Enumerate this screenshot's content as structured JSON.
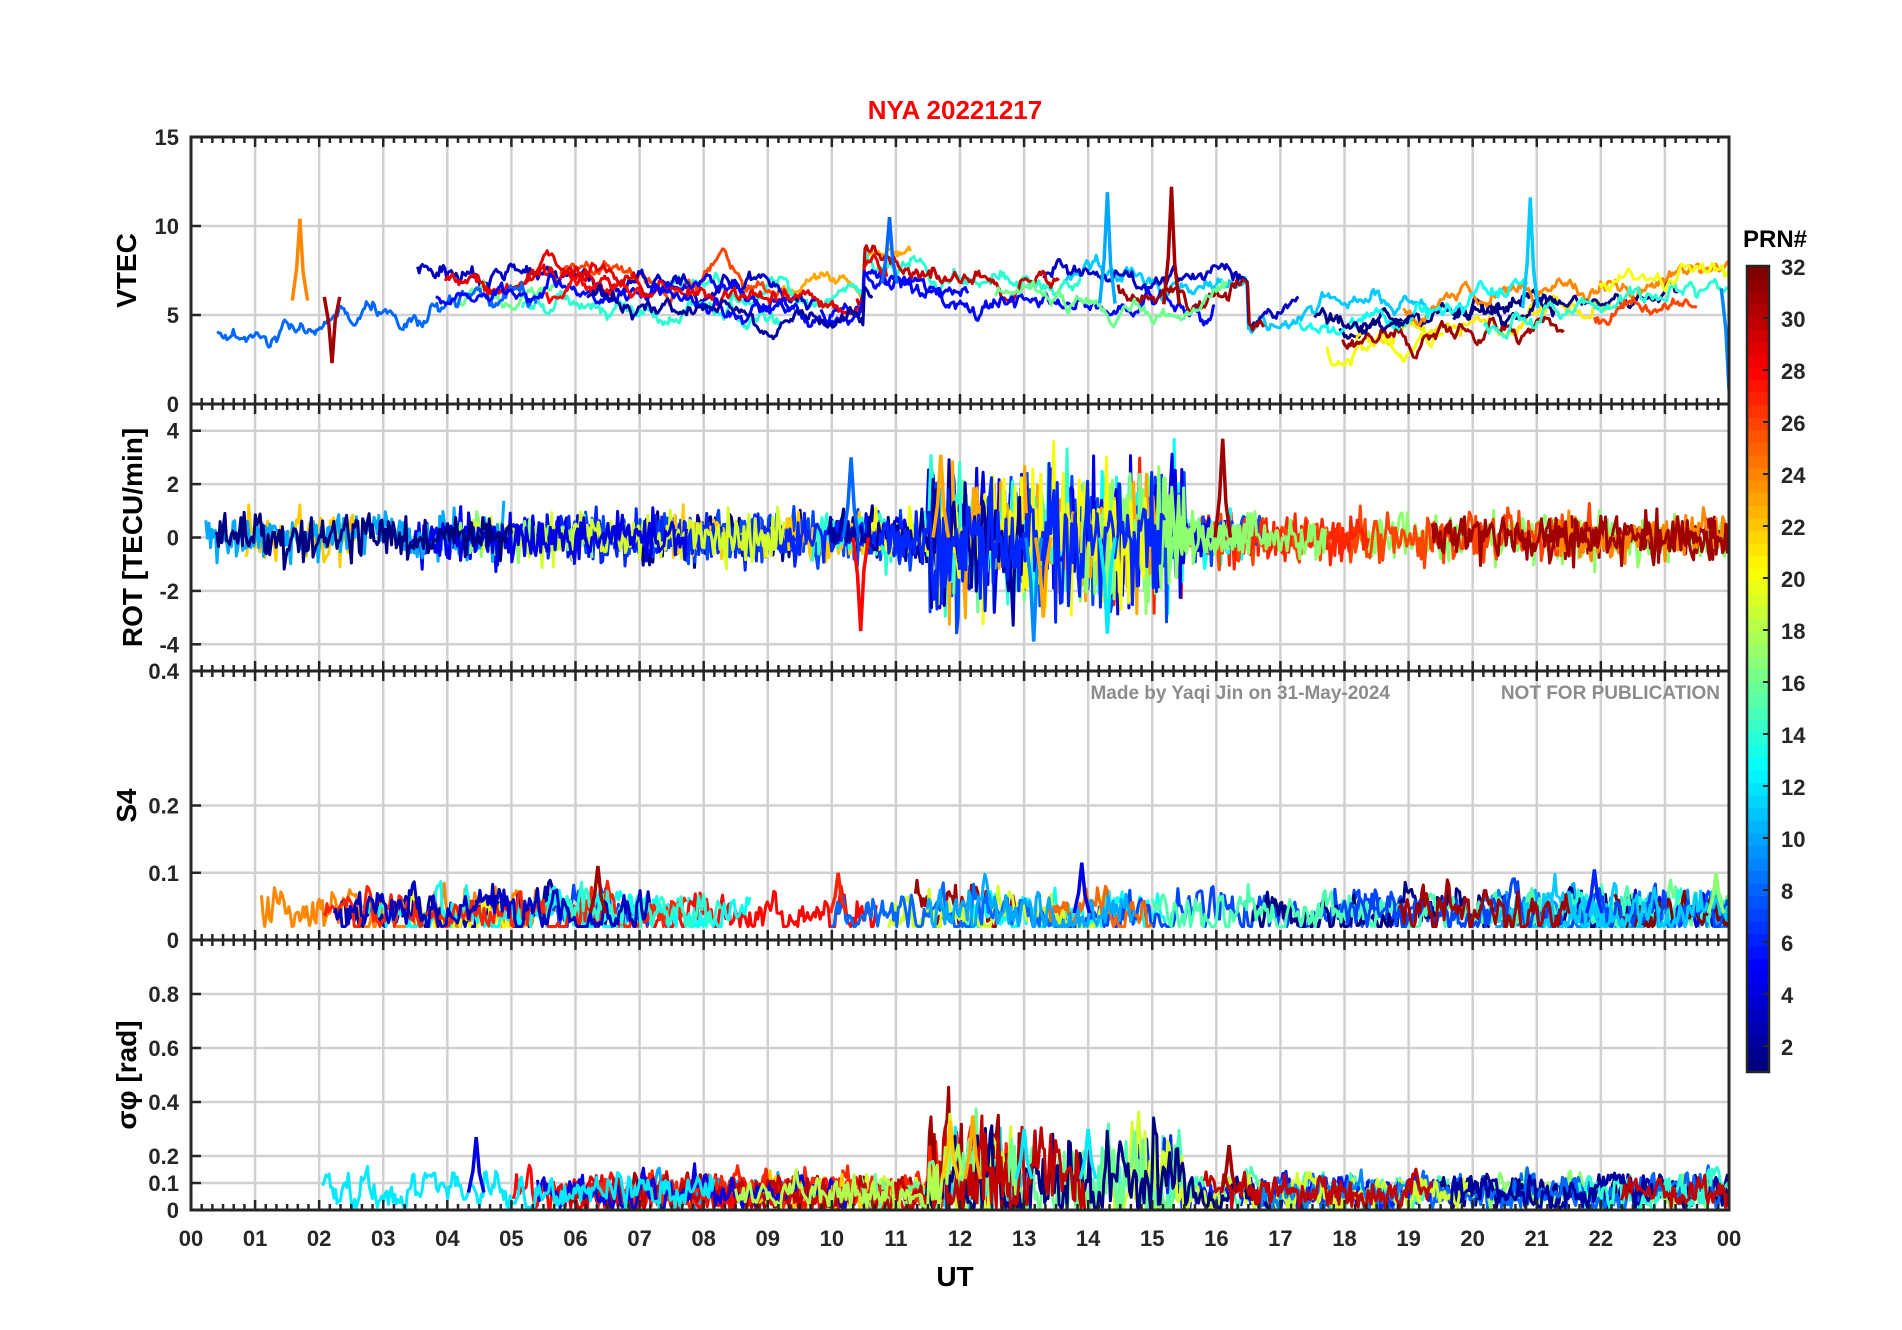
{
  "figure": {
    "title": "NYA   20221217",
    "xlabel": "UT",
    "watermark_left": "Made by Yaqi Jin on 31-May-2024",
    "watermark_right": "NOT FOR PUBLICATION",
    "colorbar": {
      "label": "PRN#",
      "ticks": [
        "2",
        "4",
        "6",
        "8",
        "10",
        "12",
        "14",
        "16",
        "18",
        "20",
        "22",
        "24",
        "26",
        "28",
        "30",
        "32"
      ],
      "range": [
        1,
        32
      ],
      "colormap": "jet"
    },
    "colors": {
      "title": "#ff0000",
      "axis": "#262626",
      "grid": "#d0d0d0",
      "watermark": "#8c8c8c"
    }
  },
  "chart_data": [
    {
      "type": "line",
      "id": "vtec",
      "ylabel": "VTEC",
      "xlabel": "UT",
      "xlim": [
        0,
        24
      ],
      "ylim": [
        0,
        15
      ],
      "yticks": [
        "0",
        "5",
        "10",
        "15"
      ],
      "xticks": [
        "00",
        "01",
        "02",
        "03",
        "04",
        "05",
        "06",
        "07",
        "08",
        "09",
        "10",
        "11",
        "12",
        "13",
        "14",
        "15",
        "16",
        "17",
        "18",
        "19",
        "20",
        "21",
        "22",
        "23",
        "00"
      ],
      "grid": true,
      "series_summary": "multiple satellite tracks colored by PRN 1-32, typical values 3-11 TECU",
      "highlights": [
        {
          "x": 15.3,
          "y": 12.2,
          "prn": 31
        },
        {
          "x": 14.3,
          "y": 11.9,
          "prn": 10
        },
        {
          "x": 20.9,
          "y": 11.6,
          "prn": 11
        },
        {
          "x": 1.7,
          "y": 10.4,
          "prn": 24
        },
        {
          "x": 10.9,
          "y": 10.5,
          "prn": 8
        },
        {
          "x": 2.2,
          "y": 2.3,
          "prn": 31
        },
        {
          "x": 24.0,
          "y": 0.8,
          "prn": 9
        }
      ]
    },
    {
      "type": "line",
      "id": "rot",
      "ylabel": "ROT [TECU/min]",
      "xlim": [
        0,
        24
      ],
      "ylim": [
        -5,
        5
      ],
      "yticks": [
        "-4",
        "-2",
        "0",
        "2",
        "4"
      ],
      "grid": true,
      "series_summary": "rate of TEC fluctuating around 0, mostly within ±1 TECU/min",
      "highlights": [
        {
          "x": 16.1,
          "y": 3.7,
          "prn": 31
        },
        {
          "x": 11.7,
          "y": 3.1,
          "prn": 23
        },
        {
          "x": 10.3,
          "y": 3.0,
          "prn": 8
        },
        {
          "x": 10.45,
          "y": -3.5,
          "prn": 28
        },
        {
          "x": 13.15,
          "y": -3.9,
          "prn": 9
        },
        {
          "x": 13.3,
          "y": -3.0,
          "prn": 23
        },
        {
          "x": 14.3,
          "y": -3.6,
          "prn": 12
        }
      ]
    },
    {
      "type": "line",
      "id": "s4",
      "ylabel": "S4",
      "xlim": [
        0,
        24
      ],
      "ylim": [
        0,
        0.4
      ],
      "yticks": [
        "0",
        "0.1",
        "0.2",
        "0.4"
      ],
      "grid": true,
      "series_summary": "amplitude scintillation index, baseline ~0.03-0.05",
      "highlights": [
        {
          "x": 13.9,
          "y": 0.115,
          "prn": 4
        },
        {
          "x": 6.35,
          "y": 0.11,
          "prn": 31
        },
        {
          "x": 21.9,
          "y": 0.105,
          "prn": 6
        },
        {
          "x": 10.1,
          "y": 0.1,
          "prn": 27
        },
        {
          "x": 23.8,
          "y": 0.1,
          "prn": 17
        }
      ]
    },
    {
      "type": "line",
      "id": "sigma_phi",
      "ylabel": "σφ [rad]",
      "xlim": [
        0,
        24
      ],
      "ylim": [
        0,
        1
      ],
      "yticks": [
        "0",
        "0.1",
        "0.2",
        "0.4",
        "0.6",
        "0.8"
      ],
      "grid": true,
      "series_summary": "phase scintillation index, baseline ~0.05-0.1, enhanced 11.5-15.5 UT",
      "highlights": [
        {
          "x": 12.2,
          "y": 0.35,
          "prn": 23
        },
        {
          "x": 11.85,
          "y": 0.33,
          "prn": 22
        },
        {
          "x": 13.0,
          "y": 0.3,
          "prn": 12
        },
        {
          "x": 14.0,
          "y": 0.3,
          "prn": 12
        },
        {
          "x": 4.45,
          "y": 0.27,
          "prn": 4
        },
        {
          "x": 16.2,
          "y": 0.24,
          "prn": 31
        }
      ]
    }
  ]
}
